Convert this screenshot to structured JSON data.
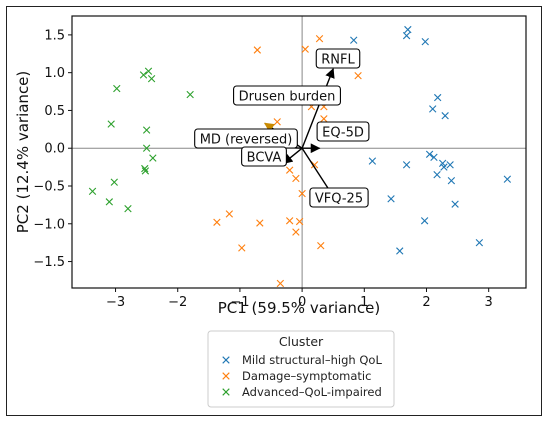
{
  "chart_data": {
    "type": "scatter",
    "xlabel": "PC1 (59.5% variance)",
    "ylabel": "PC2 (12.4% variance)",
    "xlim": [
      -3.7,
      3.6
    ],
    "ylim": [
      -1.85,
      1.75
    ],
    "xticks": [
      "−3",
      "−2",
      "−1",
      "0",
      "1",
      "2",
      "3"
    ],
    "yticks": [
      "1.5",
      "1.0",
      "0.5",
      "0.0",
      "−0.5",
      "−1.0",
      "−1.5"
    ],
    "grid": false,
    "legend": {
      "title": "Cluster",
      "placement": "bottom-center"
    },
    "series": [
      {
        "name": "Mild structural–high QoL",
        "color": "#1f77b4",
        "marker": "x",
        "points": [
          [
            1.7,
            1.57
          ],
          [
            1.68,
            1.49
          ],
          [
            1.98,
            1.41
          ],
          [
            0.83,
            1.43
          ],
          [
            2.18,
            0.67
          ],
          [
            2.1,
            0.52
          ],
          [
            2.3,
            0.43
          ],
          [
            2.05,
            -0.08
          ],
          [
            2.12,
            -0.12
          ],
          [
            2.26,
            -0.2
          ],
          [
            2.38,
            -0.22
          ],
          [
            2.28,
            -0.25
          ],
          [
            2.17,
            -0.35
          ],
          [
            1.13,
            -0.17
          ],
          [
            1.68,
            -0.22
          ],
          [
            2.4,
            -0.43
          ],
          [
            3.3,
            -0.41
          ],
          [
            2.46,
            -0.74
          ],
          [
            1.43,
            -0.67
          ],
          [
            1.97,
            -0.96
          ],
          [
            2.85,
            -1.25
          ],
          [
            1.57,
            -1.36
          ]
        ]
      },
      {
        "name": "Damage–symptomatic",
        "color": "#ff7f0e",
        "marker": "x",
        "points": [
          [
            -0.72,
            1.3
          ],
          [
            0.28,
            1.45
          ],
          [
            0.05,
            1.31
          ],
          [
            0.9,
            0.96
          ],
          [
            0.15,
            0.55
          ],
          [
            0.35,
            0.55
          ],
          [
            0.35,
            0.39
          ],
          [
            -0.4,
            0.35
          ],
          [
            0.2,
            -0.22
          ],
          [
            -0.2,
            -0.29
          ],
          [
            -0.1,
            -0.4
          ],
          [
            -1.37,
            -0.98
          ],
          [
            -1.17,
            -0.87
          ],
          [
            -0.68,
            -0.99
          ],
          [
            -0.2,
            -0.96
          ],
          [
            0.0,
            -0.6
          ],
          [
            -0.04,
            -0.97
          ],
          [
            -0.1,
            -1.11
          ],
          [
            0.3,
            -1.29
          ],
          [
            -0.97,
            -1.32
          ],
          [
            -0.35,
            -1.79
          ]
        ]
      },
      {
        "name": "Advanced–QoL-impaired",
        "color": "#2ca02c",
        "marker": "x",
        "points": [
          [
            -2.55,
            0.97
          ],
          [
            -2.47,
            1.02
          ],
          [
            -2.42,
            0.92
          ],
          [
            -2.98,
            0.79
          ],
          [
            -1.8,
            0.71
          ],
          [
            -3.07,
            0.32
          ],
          [
            -2.5,
            0.24
          ],
          [
            -2.5,
            0.0
          ],
          [
            -2.4,
            -0.13
          ],
          [
            -2.53,
            -0.27
          ],
          [
            -2.52,
            -0.3
          ],
          [
            -3.02,
            -0.45
          ],
          [
            -3.37,
            -0.57
          ],
          [
            -3.1,
            -0.71
          ],
          [
            -2.8,
            -0.8
          ]
        ]
      }
    ],
    "loadings": [
      {
        "label": "RNFL",
        "end": [
          0.5,
          1.05
        ]
      },
      {
        "label": "Drusen burden",
        "end": [
          -0.6,
          0.33
        ]
      },
      {
        "label": "MD (reversed)",
        "end": [
          -0.5,
          0.02
        ]
      },
      {
        "label": "EQ-5D",
        "end": [
          0.28,
          0.0
        ]
      },
      {
        "label": "BCVA",
        "end": [
          -0.3,
          -0.2
        ]
      },
      {
        "label": "VFQ-25",
        "end": [
          0.52,
          -0.66
        ]
      }
    ]
  }
}
